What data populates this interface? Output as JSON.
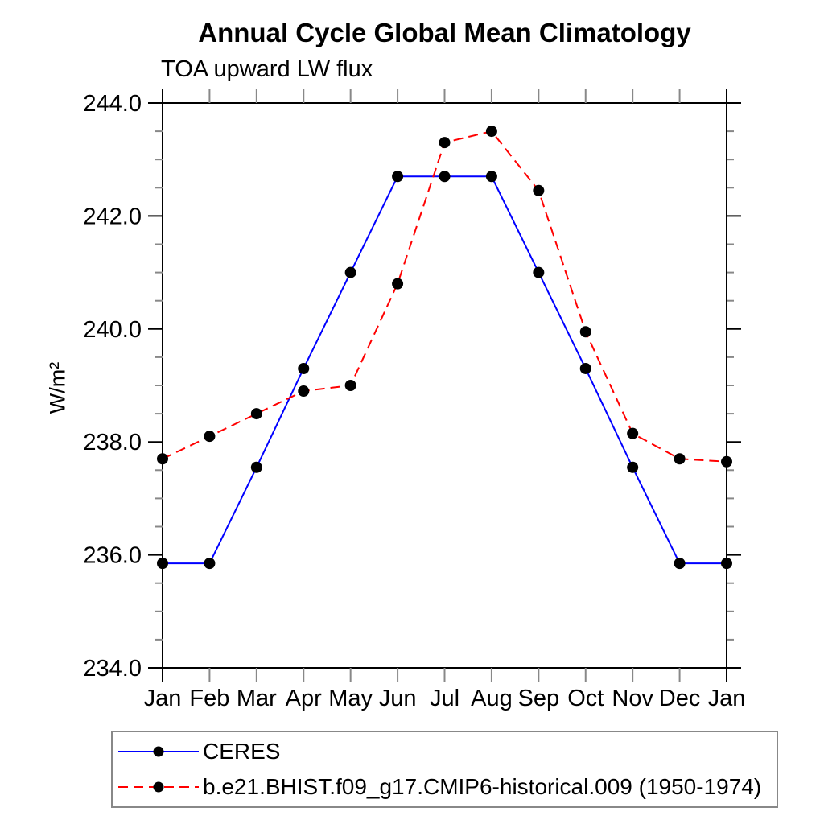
{
  "chart_data": {
    "type": "line",
    "title": "Annual Cycle Global Mean Climatology",
    "subtitle": "TOA upward LW flux",
    "ylabel": "W/m²",
    "xlabel": "",
    "categories": [
      "Jan",
      "Feb",
      "Mar",
      "Apr",
      "May",
      "Jun",
      "Jul",
      "Aug",
      "Sep",
      "Oct",
      "Nov",
      "Dec",
      "Jan"
    ],
    "ylim": [
      234.0,
      244.0
    ],
    "yticks_major": [
      234.0,
      236.0,
      238.0,
      240.0,
      242.0,
      244.0
    ],
    "ytick_minor_step": 0.5,
    "ytick_decimals": 1,
    "grid": false,
    "legend_position": "bottom-left",
    "series": [
      {
        "name": "CERES",
        "color": "#0000ff",
        "line_style": "solid",
        "marker": "filled-circle",
        "marker_color": "#000000",
        "values": [
          235.85,
          235.85,
          237.55,
          239.3,
          241.0,
          242.7,
          242.7,
          242.7,
          241.0,
          239.3,
          237.55,
          235.85,
          235.85
        ]
      },
      {
        "name": "b.e21.BHIST.f09_g17.CMIP6-historical.009 (1950-1974)",
        "color": "#ff0000",
        "line_style": "dashed",
        "marker": "filled-circle",
        "marker_color": "#000000",
        "values": [
          237.7,
          238.1,
          238.5,
          238.9,
          239.0,
          240.8,
          243.3,
          243.5,
          242.45,
          239.95,
          238.15,
          237.7,
          237.65
        ]
      }
    ],
    "axis_colors": {
      "major": "#000000",
      "minor": "#888888"
    }
  }
}
